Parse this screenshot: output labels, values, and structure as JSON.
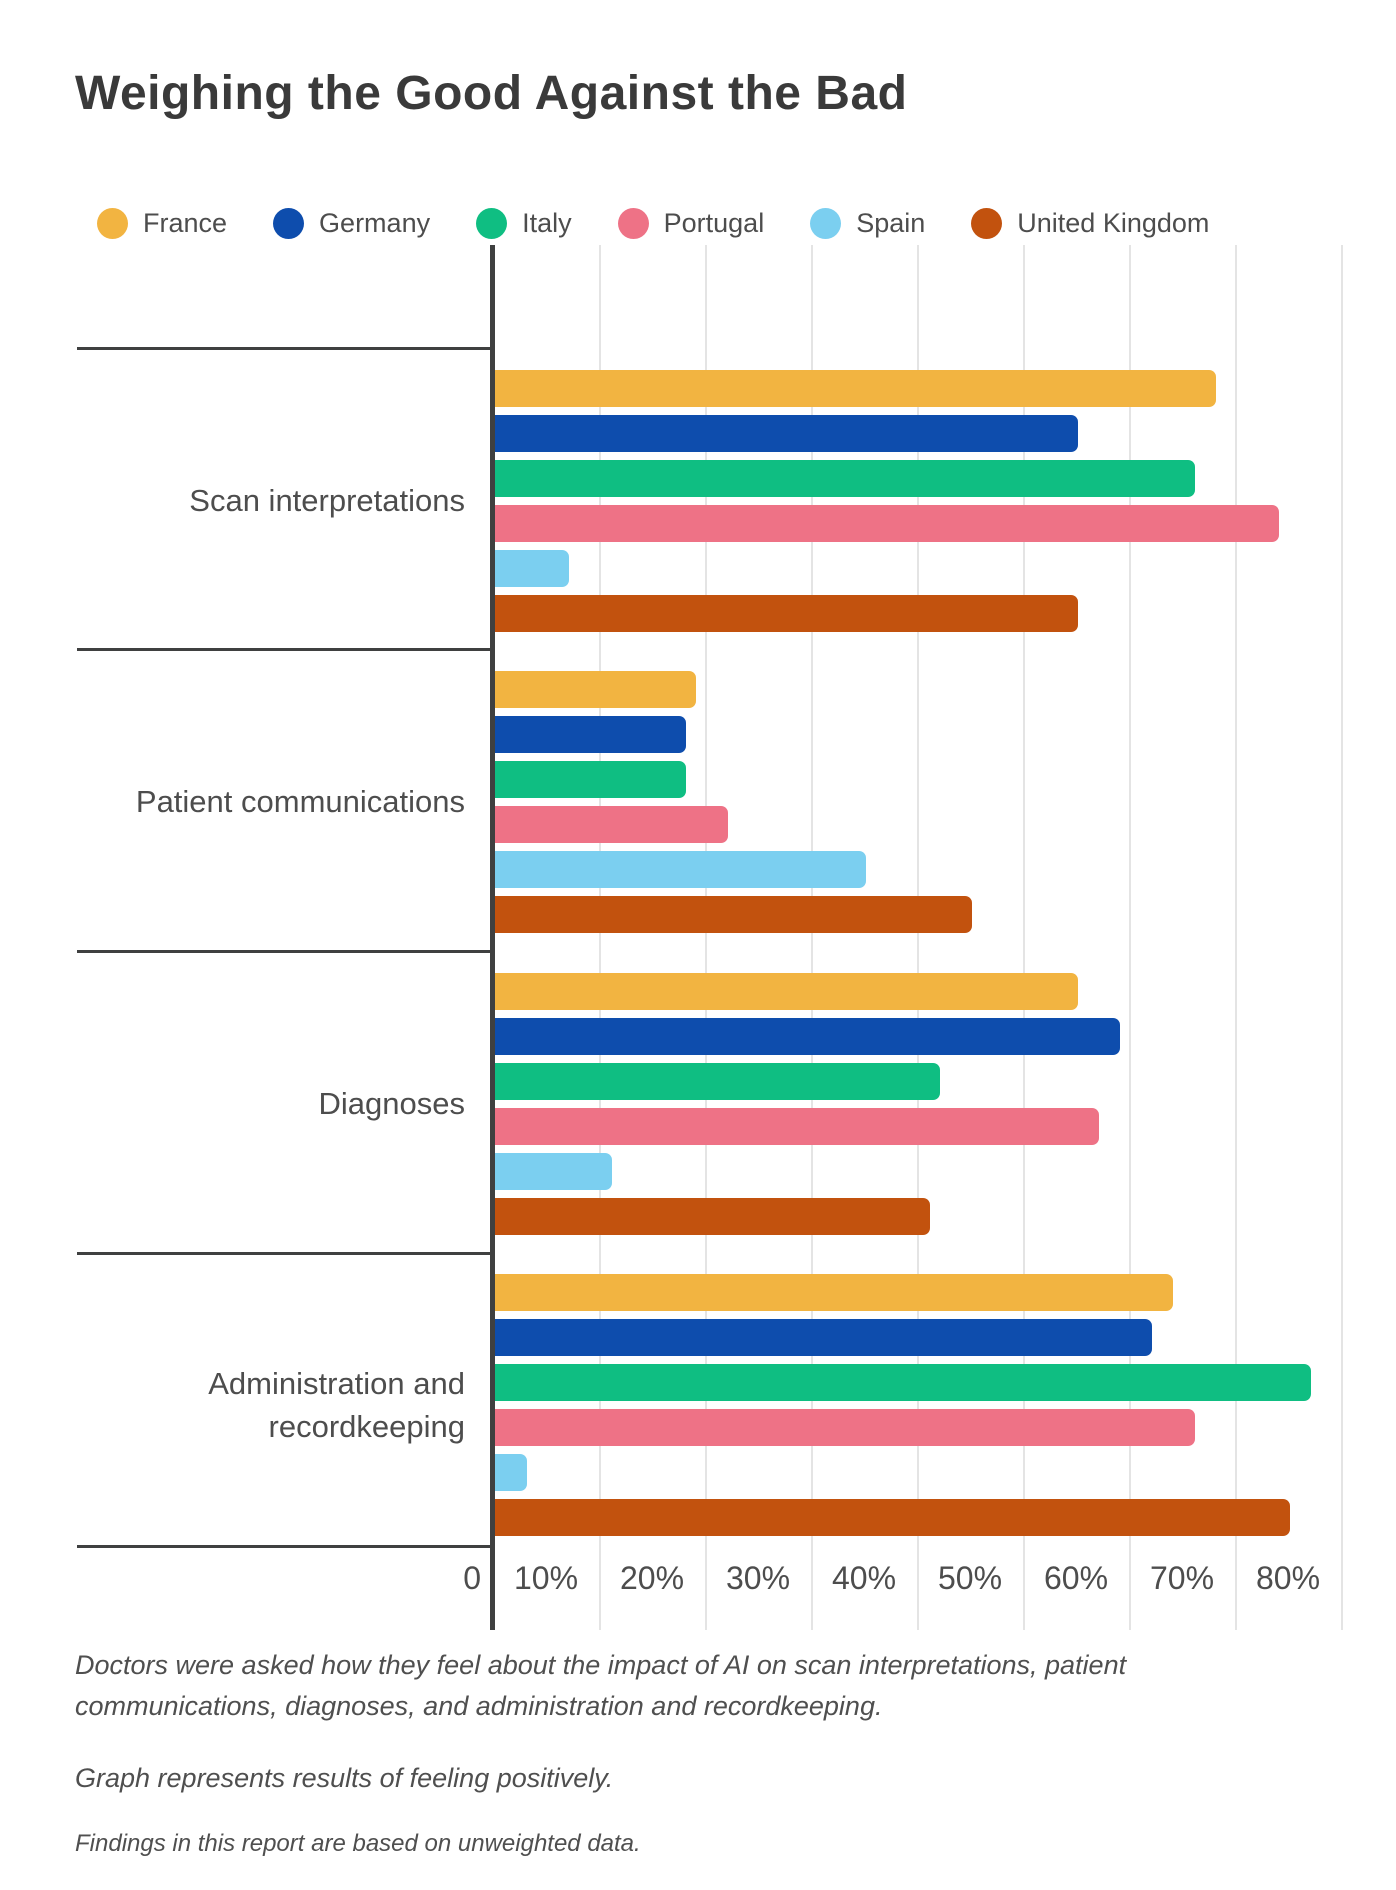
{
  "title": "Weighing the Good Against the Bad",
  "chart_data": {
    "type": "bar",
    "orientation": "horizontal",
    "title": "Weighing the Good Against the Bad",
    "categories": [
      "Scan interpretations",
      "Patient communications",
      "Diagnoses",
      "Administration and recordkeeping"
    ],
    "series": [
      {
        "name": "France",
        "color": "#F2B441",
        "values": [
          68,
          19,
          55,
          64
        ]
      },
      {
        "name": "Germany",
        "color": "#0E4DAD",
        "values": [
          55,
          18,
          59,
          62
        ]
      },
      {
        "name": "Italy",
        "color": "#0FBE82",
        "values": [
          66,
          18,
          42,
          77
        ]
      },
      {
        "name": "Portugal",
        "color": "#EE7286",
        "values": [
          74,
          22,
          57,
          66
        ]
      },
      {
        "name": "Spain",
        "color": "#7BCFF0",
        "values": [
          7,
          35,
          11,
          3
        ]
      },
      {
        "name": "United Kingdom",
        "color": "#C2520E",
        "values": [
          55,
          45,
          41,
          75
        ]
      }
    ],
    "x_tick_labels": [
      "0",
      "10%",
      "20%",
      "30%",
      "40%",
      "50%",
      "60%",
      "70%",
      "80%"
    ],
    "xlim": [
      0,
      85
    ],
    "xlabel": "",
    "ylabel": "",
    "grid": true,
    "legend_position": "top"
  },
  "footnotes": {
    "note1": "Doctors were asked how they feel about the impact of AI on scan interpretations, patient communications, diagnoses, and administration and recordkeeping.",
    "note2": "Graph represents results of feeling positively.",
    "note3": "Findings in this report are based on unweighted data."
  }
}
